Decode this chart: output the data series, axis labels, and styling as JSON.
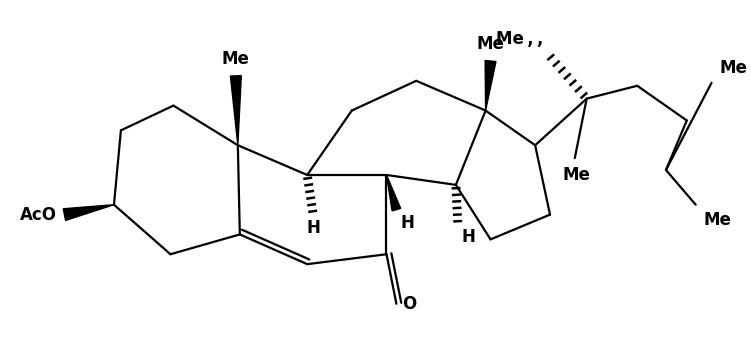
{
  "bg_color": "#ffffff",
  "line_color": "#000000",
  "lw": 1.6,
  "fs": 12,
  "xlim": [
    0,
    7.51
  ],
  "ylim": [
    0,
    3.42
  ],
  "figsize": [
    7.51,
    3.42
  ]
}
